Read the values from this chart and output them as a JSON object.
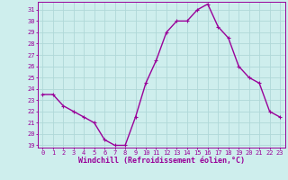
{
  "x": [
    0,
    1,
    2,
    3,
    4,
    5,
    6,
    7,
    8,
    9,
    10,
    11,
    12,
    13,
    14,
    15,
    16,
    17,
    18,
    19,
    20,
    21,
    22,
    23
  ],
  "y": [
    23.5,
    23.5,
    22.5,
    22.0,
    21.5,
    21.0,
    19.5,
    19.0,
    19.0,
    21.5,
    24.5,
    26.5,
    29.0,
    30.0,
    30.0,
    31.0,
    31.5,
    29.5,
    28.5,
    26.0,
    25.0,
    24.5,
    22.0,
    21.5
  ],
  "line_color": "#990099",
  "marker": "+",
  "marker_color": "#990099",
  "bg_color": "#ceeeed",
  "grid_color": "#b0d8d8",
  "xlabel": "Windchill (Refroidissement éolien,°C)",
  "xlabel_color": "#990099",
  "tick_color": "#990099",
  "spine_color": "#990099",
  "ylim_min": 18.8,
  "ylim_max": 31.7,
  "yticks": [
    19,
    20,
    21,
    22,
    23,
    24,
    25,
    26,
    27,
    28,
    29,
    30,
    31
  ],
  "xticks": [
    0,
    1,
    2,
    3,
    4,
    5,
    6,
    7,
    8,
    9,
    10,
    11,
    12,
    13,
    14,
    15,
    16,
    17,
    18,
    19,
    20,
    21,
    22,
    23
  ],
  "linewidth": 1.0,
  "markersize": 3.5,
  "tick_fontsize": 5.0,
  "xlabel_fontsize": 6.0
}
